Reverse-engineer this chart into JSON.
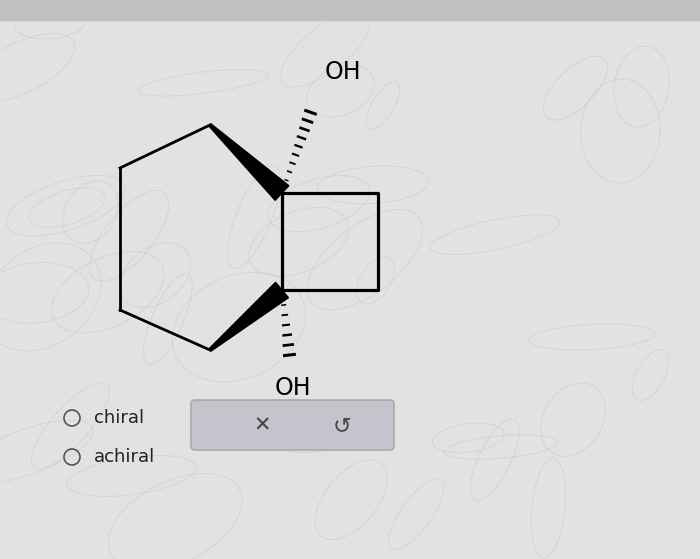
{
  "bg_color": "#e8e8e8",
  "fig_bg_color": "#dcdcdc",
  "oh_top_label": "OH",
  "oh_bottom_label": "OH",
  "chiral_label": "chiral",
  "achiral_label": "achiral",
  "button_color": "#c8c8cc",
  "radio_color": "#555555",
  "text_color": "#111111",
  "molecule_lw": 2.0,
  "wedge_color": "#111111",
  "scribble_color": "#aaaaaa",
  "scribble_alpha": 0.3
}
